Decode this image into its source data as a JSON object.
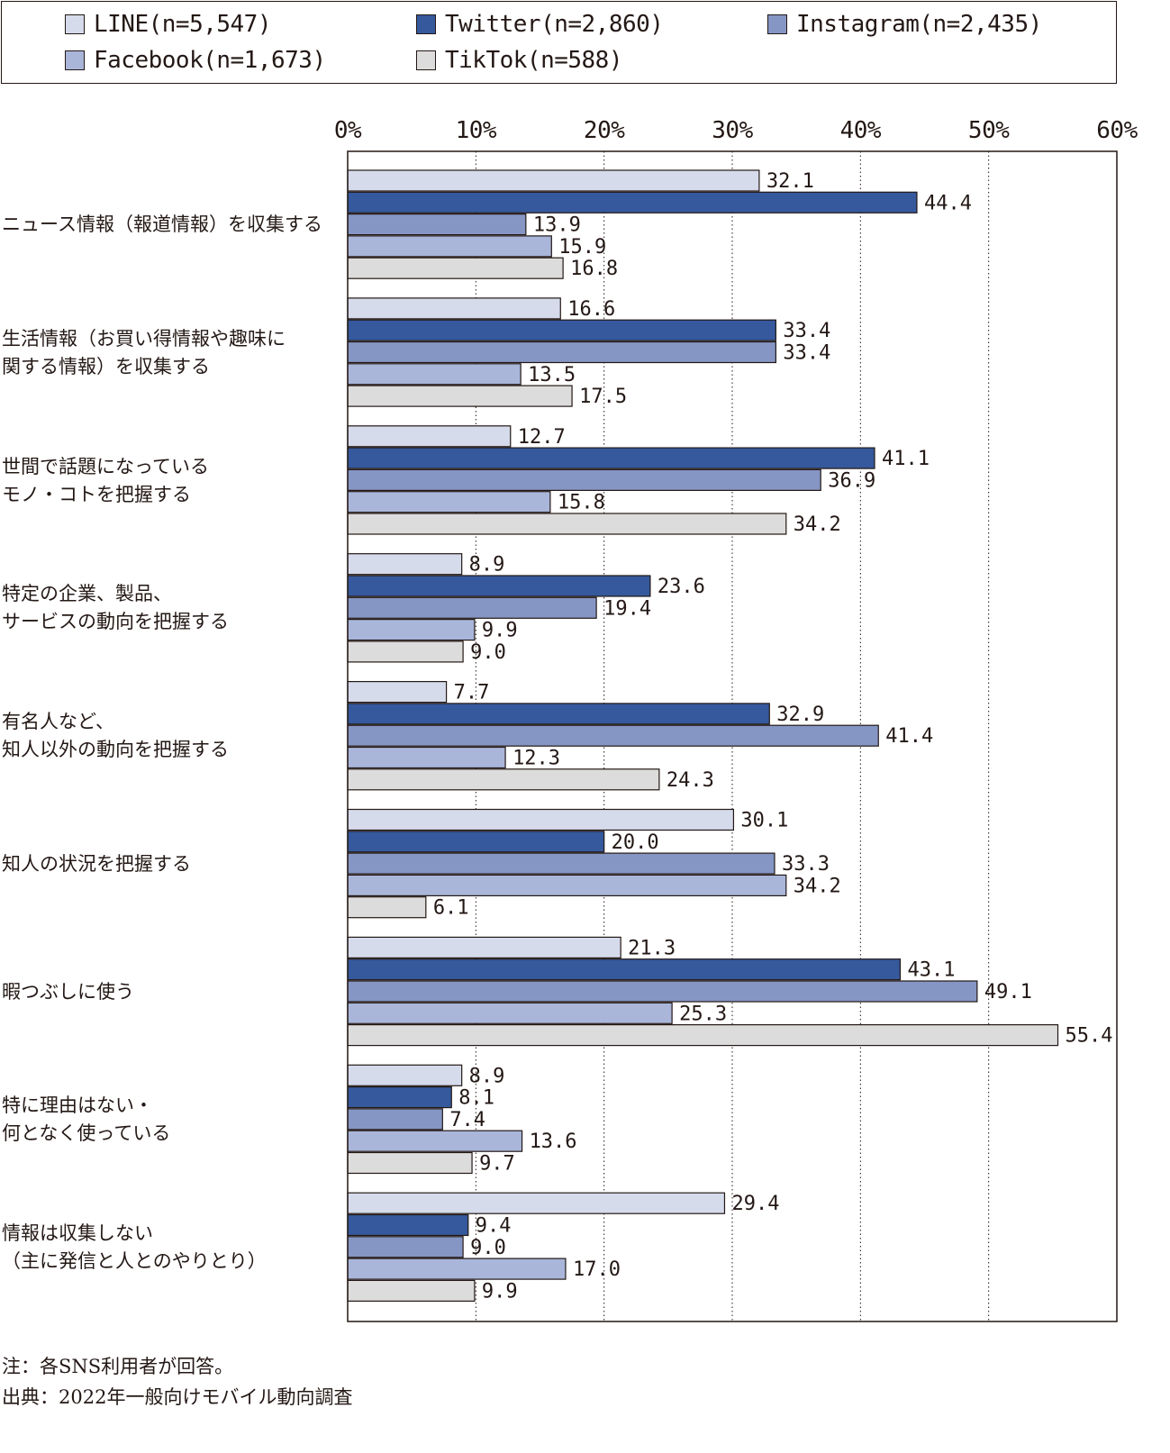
{
  "chart_data": {
    "type": "bar",
    "orientation": "horizontal",
    "xlim": [
      0,
      60
    ],
    "x_ticks": [
      "0%",
      "10%",
      "20%",
      "30%",
      "40%",
      "50%",
      "60%"
    ],
    "grid": "vertical dotted",
    "legend_position": "top",
    "categories": [
      "ニュース情報（報道情報）を収集する",
      "生活情報（お買い得情報や趣味に\n関する情報）を収集する",
      "世間で話題になっている\nモノ・コトを把握する",
      "特定の企業、製品、\nサービスの動向を把握する",
      "有名人など、\n知人以外の動向を把握する",
      "知人の状況を把握する",
      "暇つぶしに使う",
      "特に理由はない・\n何となく使っている",
      "情報は収集しない\n（主に発信と人とのやりとり）"
    ],
    "series": [
      {
        "name": "LINE(n=5,547)",
        "color": "#d5dbeb",
        "values": [
          32.1,
          16.6,
          12.7,
          8.9,
          7.7,
          30.1,
          21.3,
          8.9,
          29.4
        ]
      },
      {
        "name": "Twitter(n=2,860)",
        "color": "#35599c",
        "values": [
          44.4,
          33.4,
          41.1,
          23.6,
          32.9,
          20.0,
          43.1,
          8.1,
          9.4
        ]
      },
      {
        "name": "Instagram(n=2,435)",
        "color": "#8596c4",
        "values": [
          13.9,
          33.4,
          36.9,
          19.4,
          41.4,
          33.3,
          49.1,
          7.4,
          9.0
        ]
      },
      {
        "name": "Facebook(n=1,673)",
        "color": "#a9b6da",
        "values": [
          15.9,
          13.5,
          15.8,
          9.9,
          12.3,
          34.2,
          25.3,
          13.6,
          17.0
        ]
      },
      {
        "name": "TikTok(n=588)",
        "color": "#dcdcdc",
        "values": [
          16.8,
          17.5,
          34.2,
          9.0,
          24.3,
          6.1,
          55.4,
          9.7,
          9.9
        ]
      }
    ]
  },
  "notes": {
    "note": "注：各SNS利用者が回答。",
    "source": "出典：2022年一般向けモバイル動向調査"
  }
}
